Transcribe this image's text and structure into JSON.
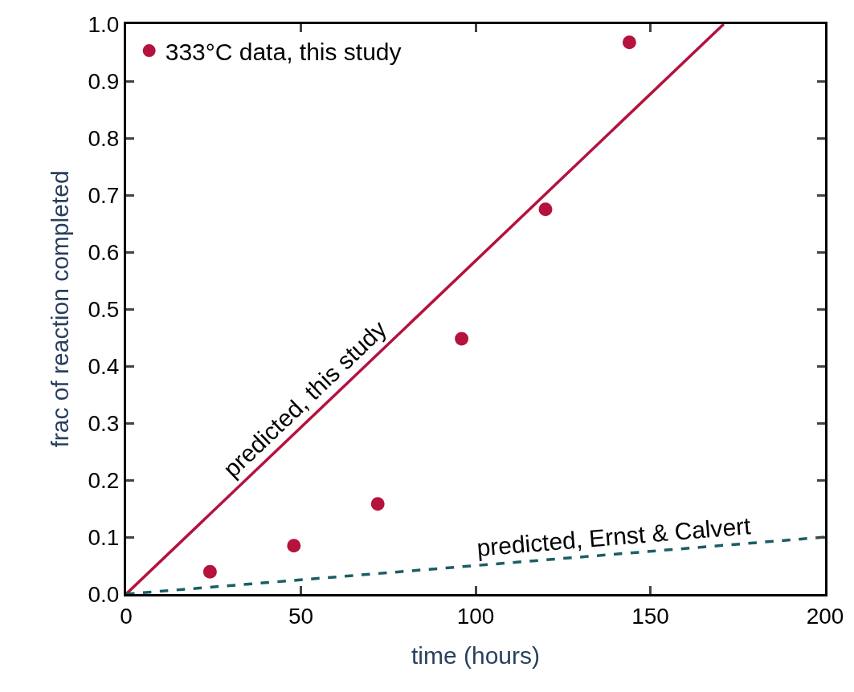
{
  "chart_data": {
    "type": "scatter",
    "xlabel": "time (hours)",
    "ylabel": "frac of reaction completed",
    "xlim": [
      0,
      200
    ],
    "ylim": [
      0,
      1.0
    ],
    "xticks": [
      0,
      50,
      100,
      150,
      200
    ],
    "yticks": [
      {
        "value": 0,
        "label": "0.0"
      },
      0.1,
      0.2,
      0.3,
      0.4,
      0.5,
      0.6,
      0.7,
      0.8,
      0.9,
      {
        "value": 1,
        "label": "1.0"
      }
    ],
    "legend": "top left",
    "series": [
      {
        "name": "333°C data, this study",
        "marker": "circle",
        "color": "#b5123e",
        "x": [
          24,
          48,
          72,
          96,
          120,
          144
        ],
        "values": [
          0.039,
          0.085,
          0.158,
          0.448,
          0.675,
          0.968
        ]
      },
      {
        "name": "predicted, this study",
        "type": "line",
        "color": "#b5123e",
        "line_style": "solid",
        "x": [
          0,
          171
        ],
        "values": [
          0,
          1.0
        ]
      },
      {
        "name": "predicted, Ernst & Calvert",
        "type": "line",
        "color": "#1a5e63",
        "line_style": "dashed",
        "x": [
          0,
          200
        ],
        "values": [
          0,
          0.1
        ]
      }
    ]
  }
}
